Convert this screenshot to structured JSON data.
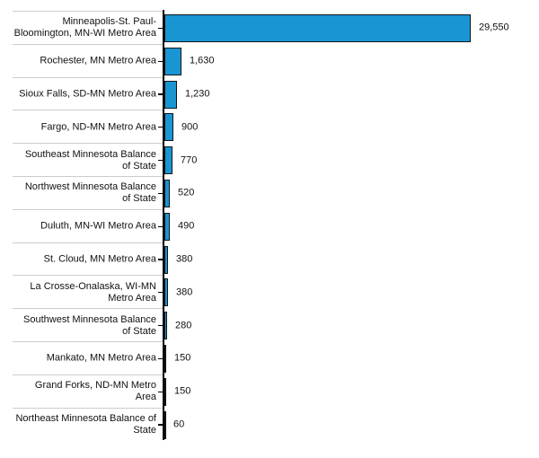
{
  "chart_data": {
    "type": "bar",
    "orientation": "horizontal",
    "title": "",
    "xlabel": "",
    "ylabel": "",
    "grid": false,
    "legend": "none",
    "value_range": [
      0,
      29550
    ],
    "categories": [
      "Minneapolis-St. Paul-\nBloomington, MN-WI Metro Area",
      "Rochester, MN Metro Area",
      "Sioux Falls, SD-MN Metro Area",
      "Fargo, ND-MN Metro Area",
      "Southeast Minnesota Balance\nof State",
      "Northwest Minnesota Balance\nof State",
      "Duluth, MN-WI Metro Area",
      "St. Cloud, MN Metro Area",
      "La Crosse-Onalaska, WI-MN\nMetro Area",
      "Southwest Minnesota Balance\nof State",
      "Mankato, MN Metro Area",
      "Grand Forks, ND-MN Metro\nArea",
      "Northeast Minnesota Balance of\nState"
    ],
    "values": [
      29550,
      1630,
      1230,
      900,
      770,
      520,
      490,
      380,
      380,
      280,
      150,
      150,
      60
    ],
    "value_labels": [
      "29,550",
      "1,630",
      "1,230",
      "900",
      "770",
      "520",
      "490",
      "380",
      "380",
      "280",
      "150",
      "150",
      "60"
    ],
    "colors": {
      "bar_fill": "#1a95d3",
      "bar_border": "#10151a",
      "axis": "#000000",
      "row_separator": "#cccccc",
      "text": "#111111"
    }
  }
}
